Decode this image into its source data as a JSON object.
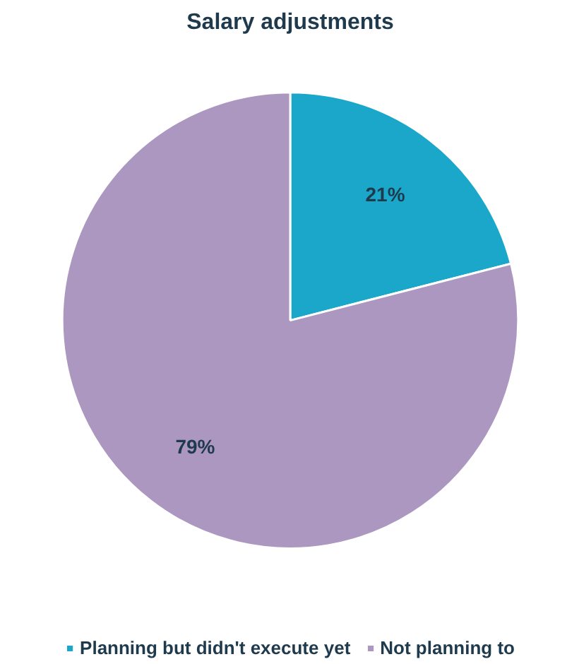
{
  "chart_data": {
    "type": "pie",
    "title": "Salary adjustments",
    "categories": [
      "Planning but didn't execute yet",
      "Not planning to"
    ],
    "values": [
      21,
      79
    ],
    "colors": [
      "#1ba7c9",
      "#ab97bf"
    ],
    "value_labels": [
      "21%",
      "79%"
    ],
    "legend": "bottom"
  }
}
